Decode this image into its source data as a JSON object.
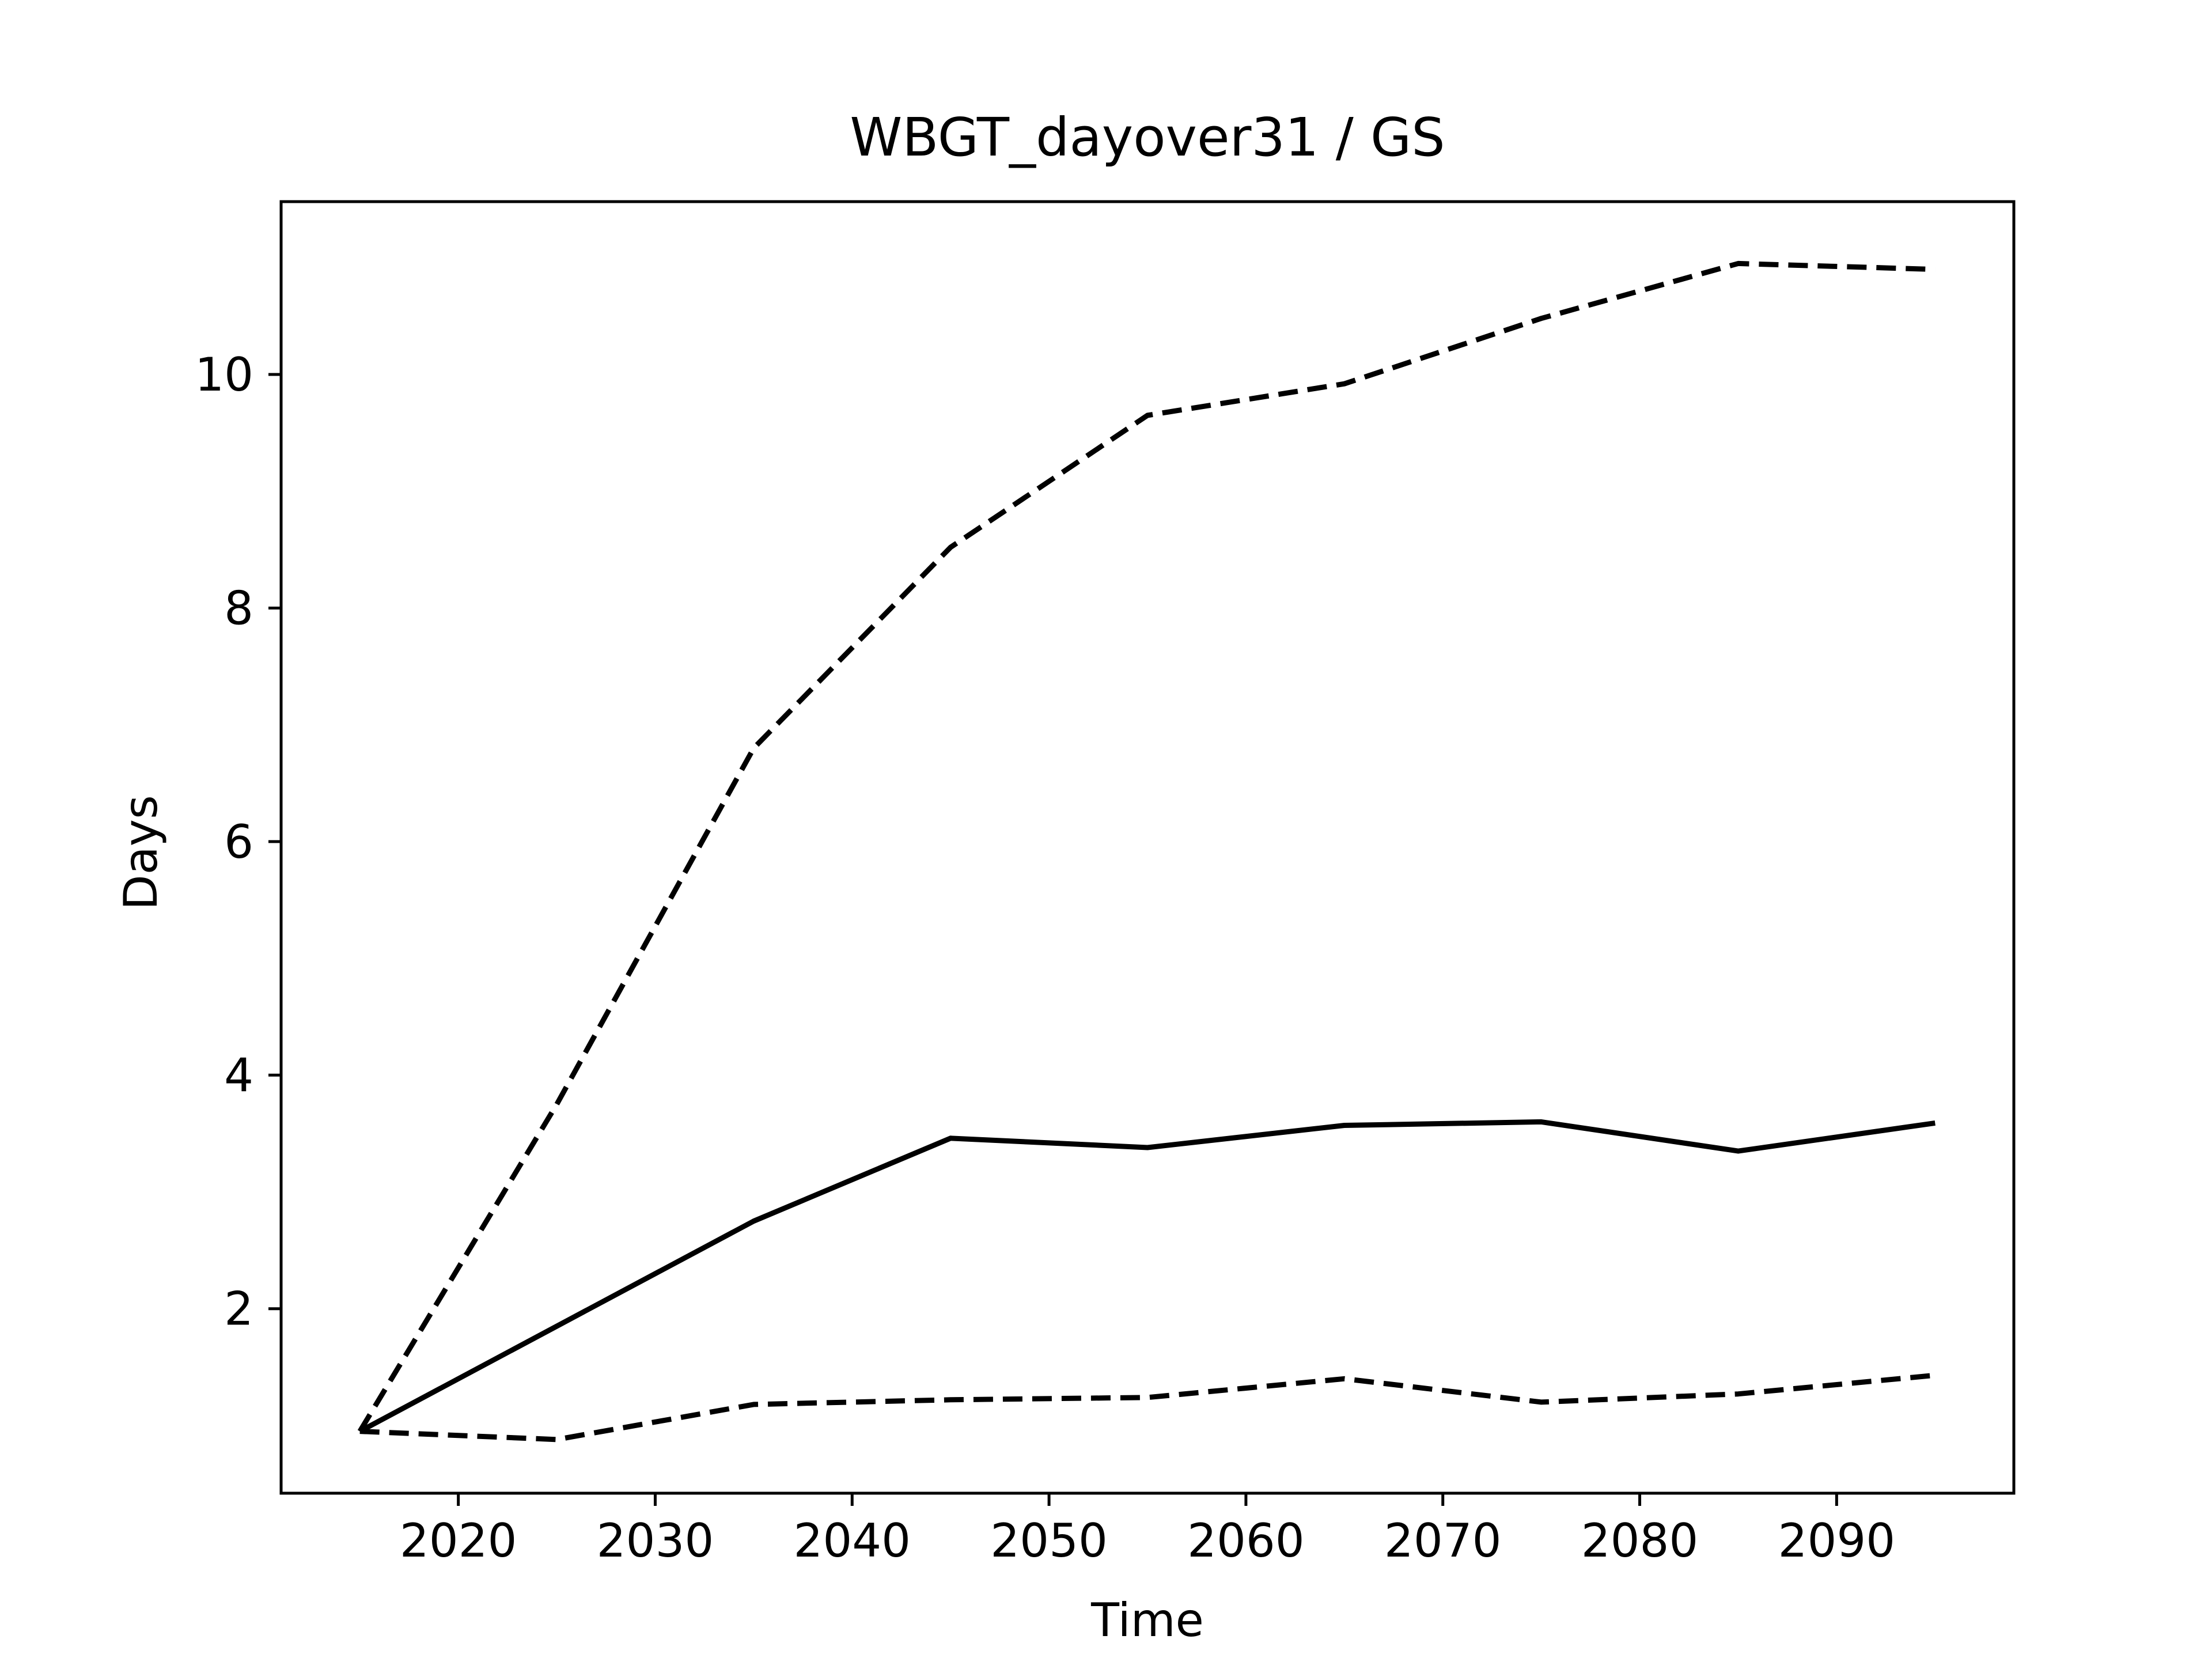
{
  "chart_data": {
    "type": "line",
    "title": "WBGT_dayover31 / GS",
    "xlabel": "Time",
    "ylabel": "Days",
    "x": [
      2015,
      2025,
      2035,
      2045,
      2055,
      2065,
      2075,
      2085,
      2095
    ],
    "xlim": [
      2011,
      2099
    ],
    "ylim": [
      0.42,
      11.48
    ],
    "xticks": [
      2020,
      2030,
      2040,
      2050,
      2060,
      2070,
      2080,
      2090
    ],
    "yticks": [
      2,
      4,
      6,
      8,
      10
    ],
    "grid": false,
    "legend": "none",
    "series": [
      {
        "style": "dashed",
        "color": "#000000",
        "values": [
          0.95,
          3.75,
          6.8,
          8.52,
          9.65,
          9.92,
          10.48,
          10.95,
          10.9
        ]
      },
      {
        "style": "solid",
        "color": "#000000",
        "values": [
          0.95,
          1.85,
          2.75,
          3.46,
          3.38,
          3.57,
          3.6,
          3.35,
          3.59
        ]
      },
      {
        "style": "dashed",
        "color": "#000000",
        "values": [
          0.95,
          0.88,
          1.18,
          1.22,
          1.24,
          1.4,
          1.2,
          1.27,
          1.43
        ]
      }
    ]
  }
}
